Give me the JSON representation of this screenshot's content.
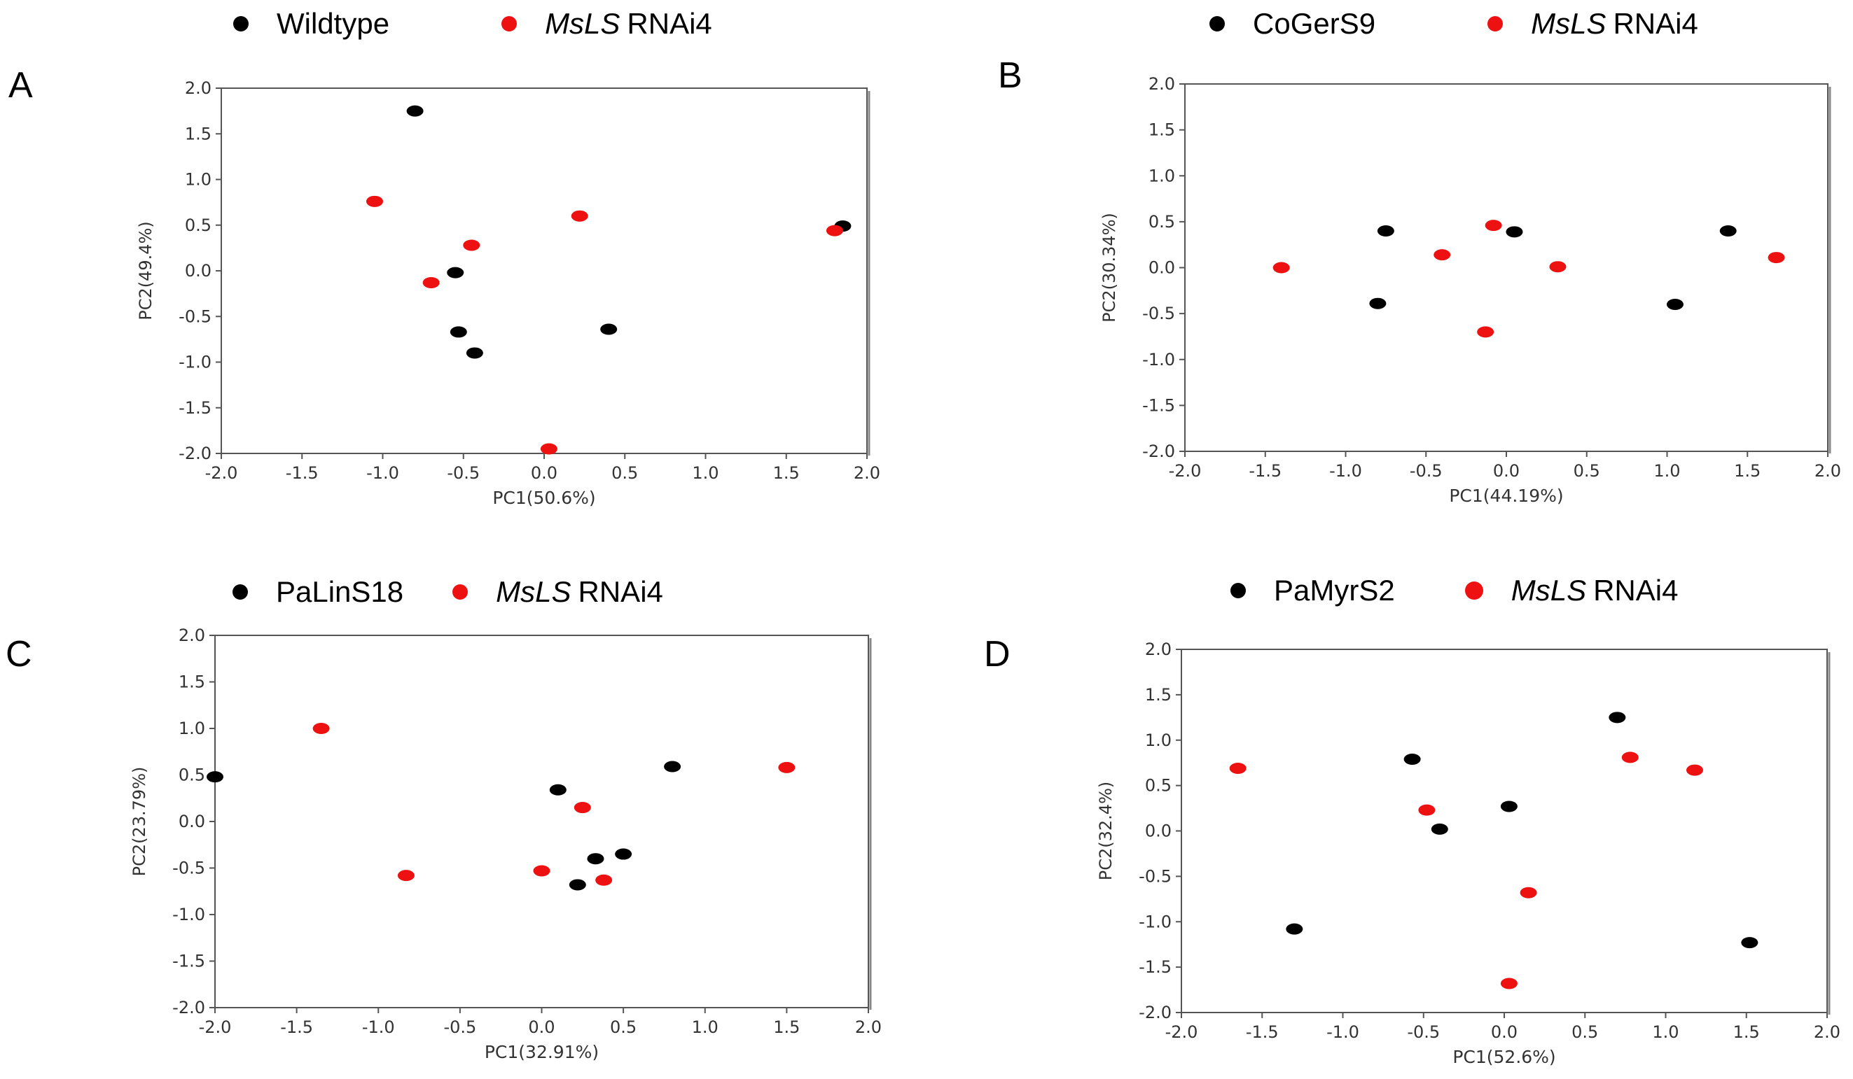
{
  "colors": {
    "black": "#000000",
    "red": "#ee1111"
  },
  "panels": [
    {
      "letter": "A",
      "legend": {
        "group": "Wildtype",
        "rnai_italic": "MsLS",
        "rnai_rest": "RNAi4"
      },
      "chart_data": {
        "type": "scatter",
        "xlabel": "PC1(50.6%)",
        "ylabel": "PC2(49.4%)",
        "xlim": [
          -2.0,
          2.0
        ],
        "ylim": [
          -2.0,
          2.0
        ],
        "xticks": [
          "-2.0",
          "-1.5",
          "-1.0",
          "-0.5",
          "0.0",
          "0.5",
          "1.0",
          "1.5",
          "2.0"
        ],
        "yticks": [
          "2.0",
          "1.5",
          "1.0",
          "0.5",
          "0.0",
          "-0.5",
          "-1.0",
          "-1.5",
          "-2.0"
        ],
        "series": [
          {
            "name": "Wildtype",
            "color": "black",
            "points": [
              [
                -0.8,
                1.75
              ],
              [
                1.85,
                0.49
              ],
              [
                -0.55,
                -0.02
              ],
              [
                -0.53,
                -0.67
              ],
              [
                -0.43,
                -0.9
              ],
              [
                0.4,
                -0.64
              ]
            ]
          },
          {
            "name": "MsLS RNAi4",
            "color": "red",
            "points": [
              [
                -1.05,
                0.76
              ],
              [
                -0.45,
                0.28
              ],
              [
                0.22,
                0.6
              ],
              [
                1.8,
                0.44
              ],
              [
                -0.7,
                -0.13
              ],
              [
                0.03,
                -1.95
              ]
            ]
          }
        ]
      }
    },
    {
      "letter": "B",
      "legend": {
        "group": "CoGerS9",
        "rnai_italic": "MsLS",
        "rnai_rest": "RNAi4"
      },
      "chart_data": {
        "type": "scatter",
        "xlabel": "PC1(44.19%)",
        "ylabel": "PC2(30.34%)",
        "xlim": [
          -2.0,
          2.0
        ],
        "ylim": [
          -2.0,
          2.0
        ],
        "xticks": [
          "-2.0",
          "-1.5",
          "-1.0",
          "-0.5",
          "0.0",
          "0.5",
          "1.0",
          "1.5",
          "2.0"
        ],
        "yticks": [
          "2.0",
          "1.5",
          "1.0",
          "0.5",
          "0.0",
          "-0.5",
          "-1.0",
          "-1.5",
          "-2.0"
        ],
        "series": [
          {
            "name": "CoGerS9",
            "color": "black",
            "points": [
              [
                -0.75,
                0.4
              ],
              [
                0.05,
                0.39
              ],
              [
                1.38,
                0.4
              ],
              [
                -0.8,
                -0.39
              ],
              [
                1.05,
                -0.4
              ]
            ]
          },
          {
            "name": "MsLS RNAi4",
            "color": "red",
            "points": [
              [
                -1.4,
                0.0
              ],
              [
                -0.4,
                0.14
              ],
              [
                -0.08,
                0.46
              ],
              [
                0.32,
                0.01
              ],
              [
                1.68,
                0.11
              ],
              [
                -0.13,
                -0.7
              ]
            ]
          }
        ]
      }
    },
    {
      "letter": "C",
      "legend": {
        "group": "PaLinS18",
        "rnai_italic": "MsLS",
        "rnai_rest": "RNAi4"
      },
      "chart_data": {
        "type": "scatter",
        "xlabel": "PC1(32.91%)",
        "ylabel": "PC2(23.79%)",
        "xlim": [
          -2.0,
          2.0
        ],
        "ylim": [
          -2.0,
          2.0
        ],
        "xticks": [
          "-2.0",
          "-1.5",
          "-1.0",
          "-0.5",
          "0.0",
          "0.5",
          "1.0",
          "1.5",
          "2.0"
        ],
        "yticks": [
          "2.0",
          "1.5",
          "1.0",
          "0.5",
          "0.0",
          "-0.5",
          "-1.0",
          "-1.5",
          "-2.0"
        ],
        "series": [
          {
            "name": "PaLinS18",
            "color": "black",
            "points": [
              [
                -2.0,
                0.48
              ],
              [
                0.1,
                0.34
              ],
              [
                0.8,
                0.59
              ],
              [
                0.33,
                -0.4
              ],
              [
                0.5,
                -0.35
              ],
              [
                0.22,
                -0.68
              ]
            ]
          },
          {
            "name": "MsLS RNAi4",
            "color": "red",
            "points": [
              [
                -1.35,
                1.0
              ],
              [
                1.5,
                0.58
              ],
              [
                0.25,
                0.15
              ],
              [
                -0.83,
                -0.58
              ],
              [
                0.0,
                -0.53
              ],
              [
                0.38,
                -0.63
              ]
            ]
          }
        ]
      }
    },
    {
      "letter": "D",
      "legend": {
        "group": "PaMyrS2",
        "rnai_italic": "MsLS",
        "rnai_rest": "RNAi4"
      },
      "chart_data": {
        "type": "scatter",
        "xlabel": "PC1(52.6%)",
        "ylabel": "PC2(32.4%)",
        "xlim": [
          -2.0,
          2.0
        ],
        "ylim": [
          -2.0,
          2.0
        ],
        "xticks": [
          "-2.0",
          "-1.5",
          "-1.0",
          "-0.5",
          "0.0",
          "0.5",
          "1.0",
          "1.5",
          "2.0"
        ],
        "yticks": [
          "2.0",
          "1.5",
          "1.0",
          "0.5",
          "0.0",
          "-0.5",
          "-1.0",
          "-1.5",
          "-2.0"
        ],
        "series": [
          {
            "name": "PaMyrS2",
            "color": "black",
            "points": [
              [
                -0.57,
                0.79
              ],
              [
                0.7,
                1.25
              ],
              [
                0.03,
                0.27
              ],
              [
                -0.4,
                0.02
              ],
              [
                -1.3,
                -1.08
              ],
              [
                1.52,
                -1.23
              ]
            ]
          },
          {
            "name": "MsLS RNAi4",
            "color": "red",
            "points": [
              [
                -1.65,
                0.69
              ],
              [
                -0.48,
                0.23
              ],
              [
                0.78,
                0.81
              ],
              [
                1.18,
                0.67
              ],
              [
                0.15,
                -0.68
              ],
              [
                0.03,
                -1.68
              ]
            ]
          }
        ]
      }
    }
  ]
}
